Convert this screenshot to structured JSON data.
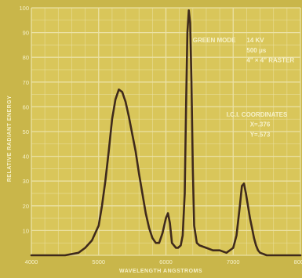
{
  "colors": {
    "background": "#c9b64a",
    "plot_fill": "#d9c65a",
    "grid": "#ece3a8",
    "curve": "#3f2a1c",
    "text": "#f6f1c9"
  },
  "chart_data": {
    "type": "line",
    "title": "",
    "xlabel": "WAVELENGTH ANGSTROMS",
    "ylabel": "RELATIVE RADIANT ENERGY",
    "xlim": [
      4000,
      8000
    ],
    "ylim": [
      0,
      100
    ],
    "grid": true,
    "x_ticks": [
      4000,
      5000,
      6000,
      7000,
      8000
    ],
    "y_ticks": [
      10,
      20,
      30,
      40,
      50,
      60,
      70,
      80,
      90,
      100
    ],
    "series": [
      {
        "x": [
          4000,
          4500,
          4700,
          4800,
          4900,
          5000,
          5050,
          5100,
          5150,
          5200,
          5250,
          5300,
          5350,
          5400,
          5450,
          5500,
          5550,
          5600,
          5650,
          5700,
          5750,
          5800,
          5850,
          5900,
          5950,
          6000,
          6030,
          6060,
          6090,
          6120,
          6150,
          6180,
          6220,
          6250,
          6280,
          6300,
          6320,
          6340,
          6360,
          6380,
          6400,
          6420,
          6460,
          6500,
          6600,
          6700,
          6800,
          6900,
          7000,
          7050,
          7100,
          7130,
          7160,
          7190,
          7220,
          7250,
          7280,
          7310,
          7340,
          7370,
          7400,
          7450,
          7500,
          7600,
          7800,
          8000
        ],
        "y": [
          0,
          0,
          1,
          3,
          6,
          12,
          20,
          30,
          42,
          55,
          63,
          67,
          66,
          62,
          56,
          49,
          42,
          33,
          25,
          17,
          11,
          7,
          5,
          5,
          9,
          15,
          17,
          13,
          5,
          4,
          3,
          3,
          4,
          8,
          25,
          60,
          90,
          99,
          94,
          70,
          35,
          12,
          5,
          4,
          3,
          2,
          2,
          1,
          3,
          8,
          20,
          28,
          29,
          25,
          20,
          15,
          11,
          7,
          4,
          2,
          1,
          0.5,
          0,
          0,
          0,
          0
        ]
      }
    ],
    "annotations": [
      {
        "text": "GREEN MODE",
        "x": 6400,
        "y": 86
      },
      {
        "text": "14 KV",
        "x": 7200,
        "y": 86
      },
      {
        "text": "500 μs",
        "x": 7200,
        "y": 82
      },
      {
        "text": "4\" × 4\" RASTER",
        "x": 7200,
        "y": 78
      },
      {
        "text": "I.C.I. COORDINATES",
        "x": 6900,
        "y": 56
      },
      {
        "text": "X=.376",
        "x": 7250,
        "y": 52
      },
      {
        "text": "Y=.573",
        "x": 7250,
        "y": 48
      }
    ]
  }
}
